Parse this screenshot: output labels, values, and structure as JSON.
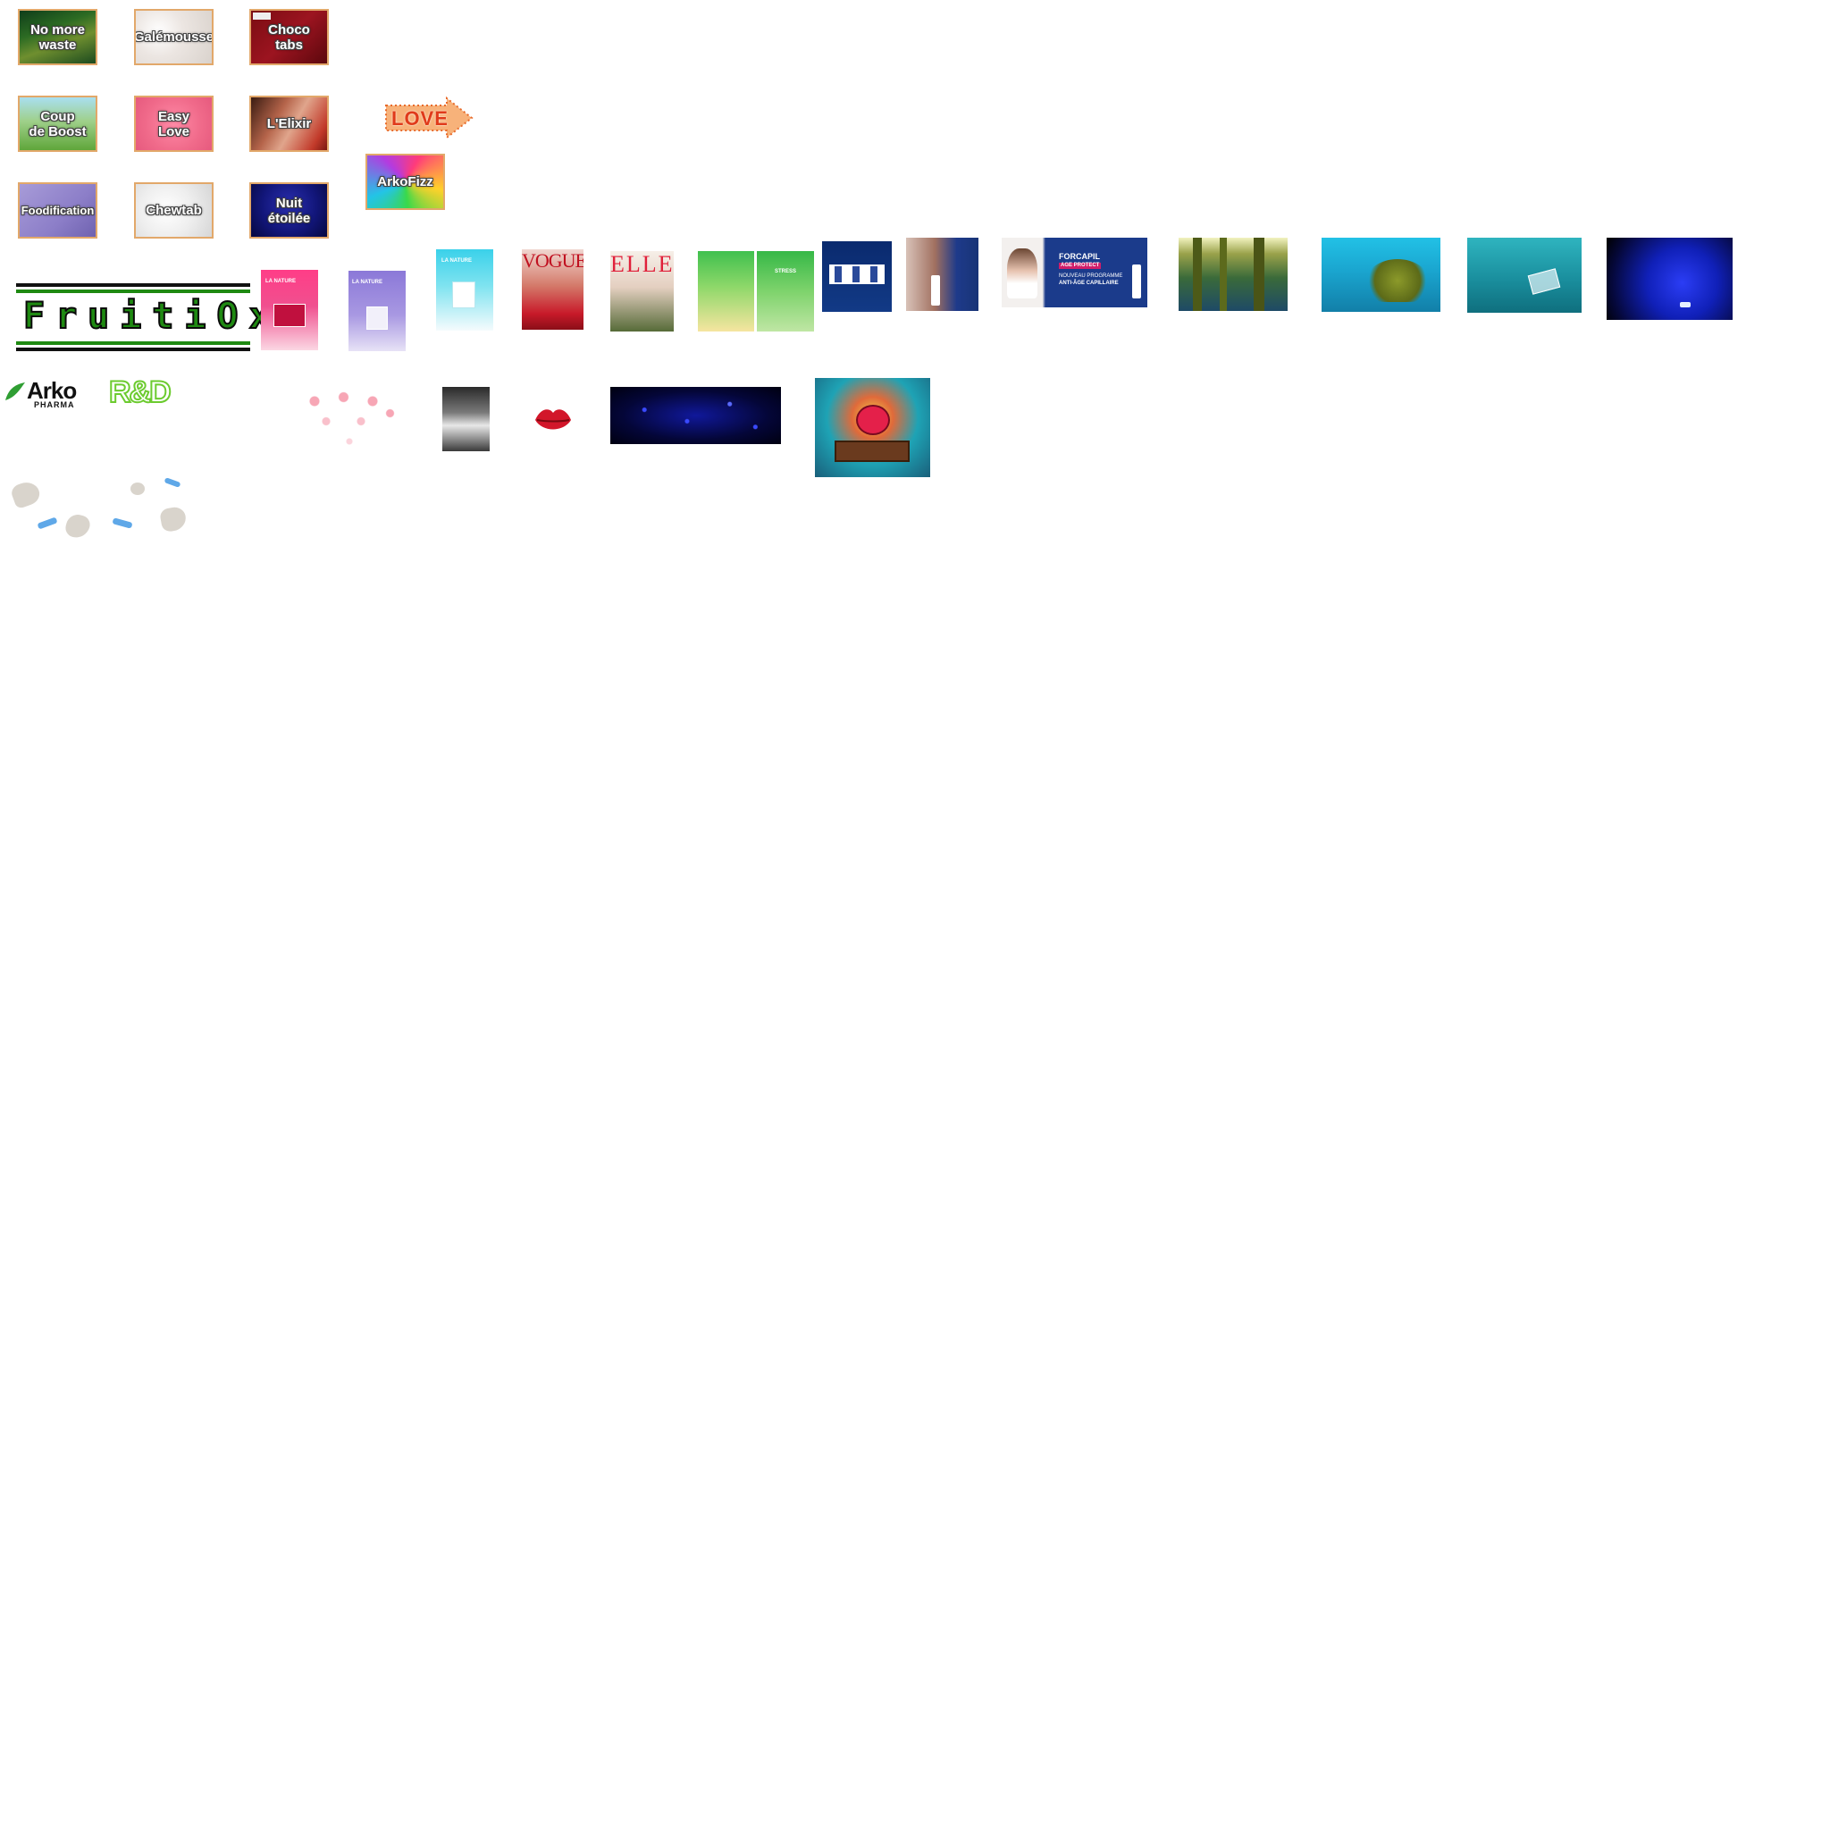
{
  "tiles": {
    "no_more_waste": "No more\nwaste",
    "galemousse": "Galémousse",
    "choco_tabs": "Choco\ntabs",
    "coup_de_boost": "Coup\nde Boost",
    "easy_love": "Easy\nLove",
    "lelixir": "L'Elixir",
    "foodification": "Foodification",
    "chewtab": "Chewtab",
    "nuit_etoilee": "Nuit\nétoilée",
    "arkofizz": "ArkoFizz"
  },
  "love_sign": "LOVE",
  "fruitiox": "FruitiOx",
  "logos": {
    "arko_main": "Arko",
    "arko_sub": "PHARMA",
    "rd": "R&D"
  },
  "magazines": {
    "vogue": "VOGUE",
    "elle": "ELLE"
  },
  "posters": {
    "la_nature": "LA NATURE",
    "stress": "STRESS"
  },
  "banners": {
    "forcapil_brand": "FORCAPIL",
    "forcapil_tag": "AGE PROTECT",
    "forcapil_line1": "NOUVEAU PROGRAMME",
    "forcapil_line2": "ANTI-ÂGE CAPILLAIRE"
  },
  "colors": {
    "tile_border": "#e2a86a",
    "fruitiox_green": "#1f8a12",
    "rd_green": "#6ccb2f",
    "arko_green": "#2f9e33"
  }
}
